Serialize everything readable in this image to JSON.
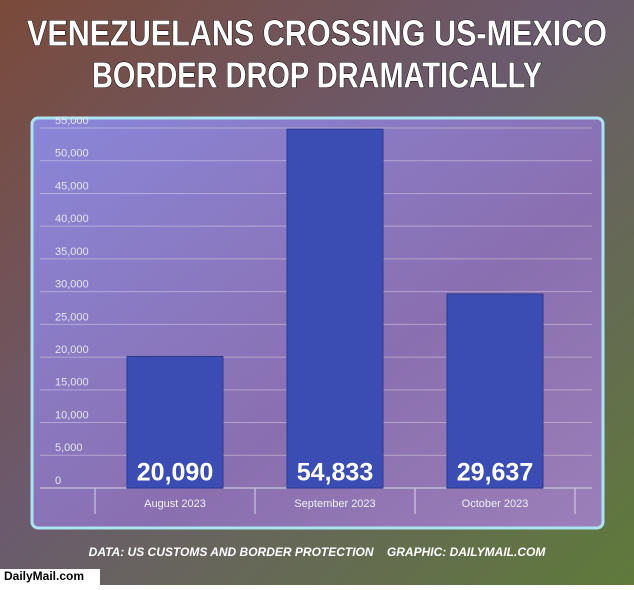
{
  "chart_data": {
    "type": "bar",
    "title": [
      "VENEZUELANS CROSSING US-MEXICO",
      "BORDER DROP DRAMATICALLY"
    ],
    "categories": [
      "August 2023",
      "September 2023",
      "October 2023"
    ],
    "values": [
      20090,
      54833,
      29637
    ],
    "value_labels": [
      "20,090",
      "54,833",
      "29,637"
    ],
    "color": "#3b4db3",
    "ylim": [
      0,
      55000
    ],
    "yticks": [
      0,
      {
        "value": 5000,
        "label": "5,000"
      },
      {
        "value": 10000,
        "label": "10,000"
      },
      {
        "value": 15000,
        "label": "15,000"
      },
      {
        "value": 20000,
        "label": "20,000"
      },
      {
        "value": 25000,
        "label": "25,000"
      },
      {
        "value": 30000,
        "label": "30,000"
      },
      {
        "value": 35000,
        "label": "35,000"
      },
      {
        "value": 40000,
        "label": "40,000"
      },
      {
        "value": 45000,
        "label": "45,000"
      },
      {
        "value": 50000,
        "label": "50,000"
      },
      {
        "value": 55000,
        "label": "55,000"
      }
    ],
    "grid": true,
    "source": "DATA: US CUSTOMS AND BORDER PROTECTION    GRAPHIC: DAILYMAIL.COM",
    "watermark": "DailyMail.com"
  }
}
